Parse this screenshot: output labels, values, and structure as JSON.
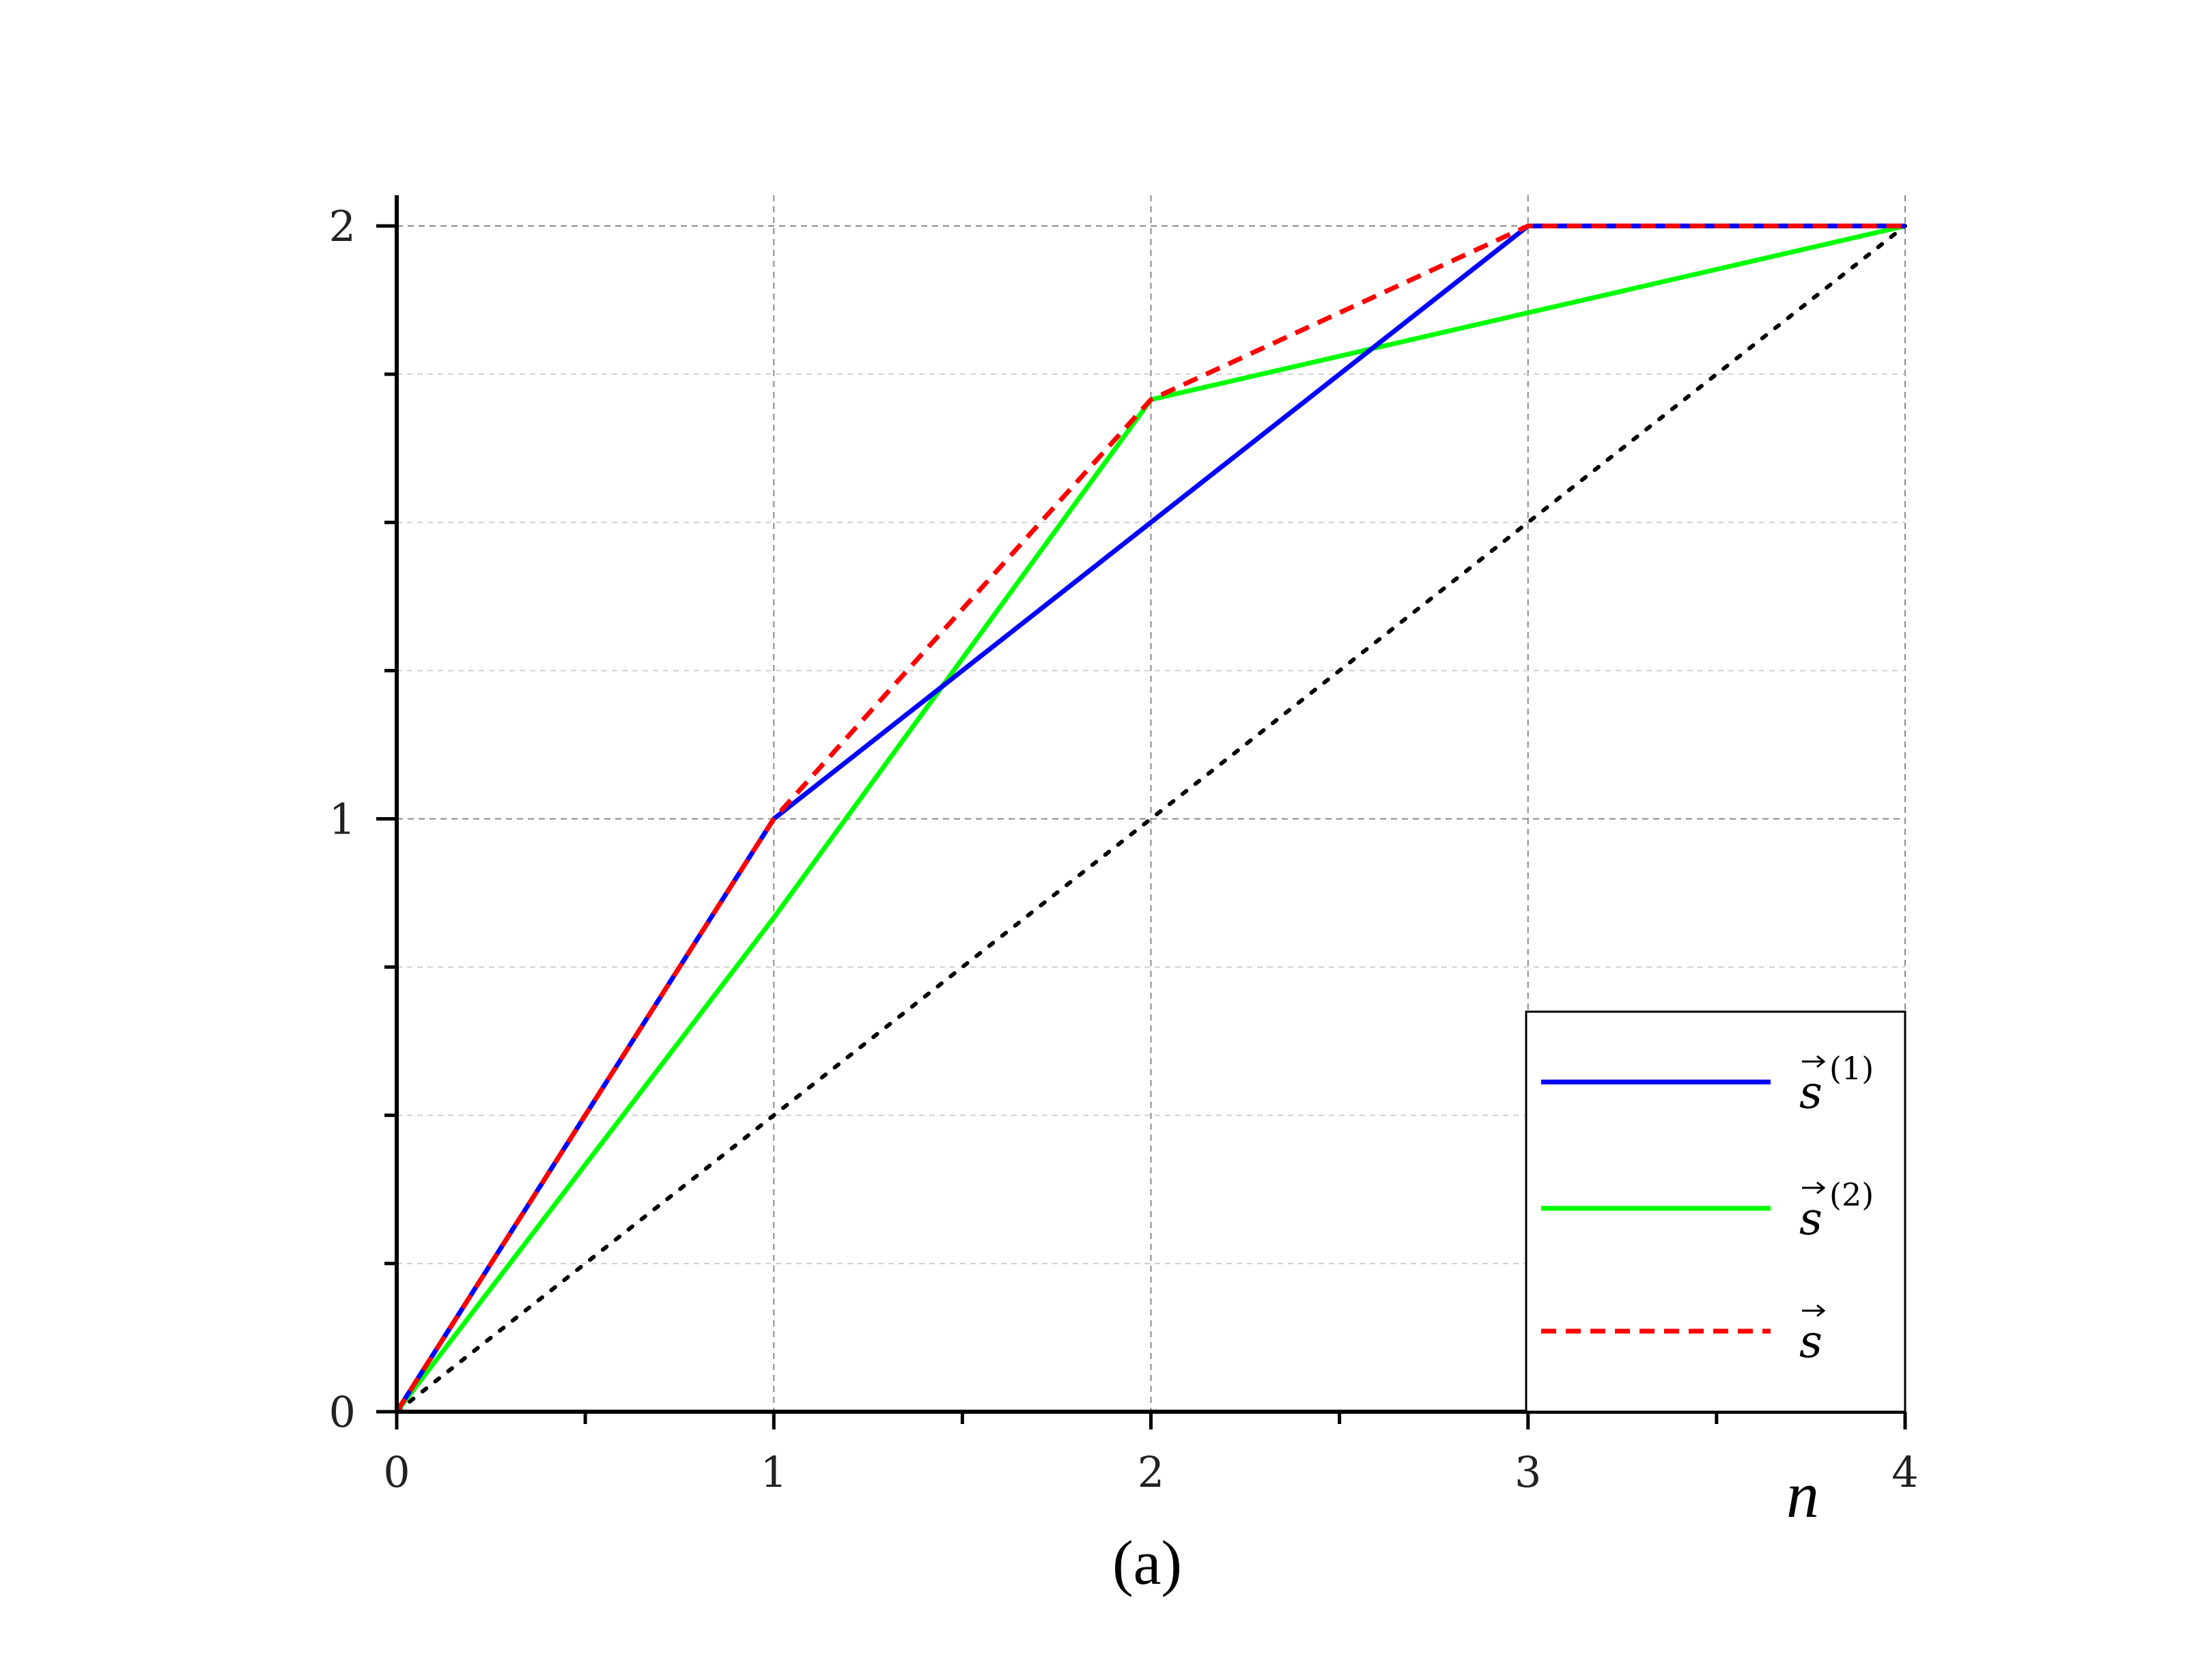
{
  "chart_data": {
    "type": "line",
    "title": "",
    "xlabel": "n",
    "ylabel": "",
    "caption": "(a)",
    "xlim": [
      0,
      4
    ],
    "ylim": [
      0,
      2
    ],
    "x_ticks": [
      0,
      1,
      2,
      3,
      4
    ],
    "y_ticks": [
      0,
      1,
      2
    ],
    "x_tick_labels": [
      "0",
      "1",
      "2",
      "3",
      "4"
    ],
    "y_tick_labels": [
      "0",
      "1",
      "2"
    ],
    "grid": true,
    "legend_position": "bottom-right",
    "series": [
      {
        "name": "s(1)",
        "legend_base": "s",
        "legend_sup": "(1)",
        "color": "#0000ff",
        "dash": "solid",
        "x": [
          0,
          1,
          2,
          3,
          4
        ],
        "y": [
          0,
          1,
          1.5,
          2,
          2
        ]
      },
      {
        "name": "s(2)",
        "legend_base": "s",
        "legend_sup": "(2)",
        "color": "#00ff00",
        "dash": "solid",
        "x": [
          0,
          1,
          2,
          3,
          4
        ],
        "y": [
          0,
          0.8333,
          1.7071,
          1.8536,
          2
        ]
      },
      {
        "name": "s",
        "legend_base": "s",
        "legend_sup": "",
        "color": "#ff0000",
        "dash": "dashed",
        "x": [
          0,
          1,
          2,
          3,
          4
        ],
        "y": [
          0,
          1,
          1.7071,
          2,
          2
        ]
      },
      {
        "name": "",
        "color": "#000000",
        "dash": "dotted",
        "x": [
          0,
          4
        ],
        "y": [
          0,
          2
        ]
      }
    ]
  }
}
